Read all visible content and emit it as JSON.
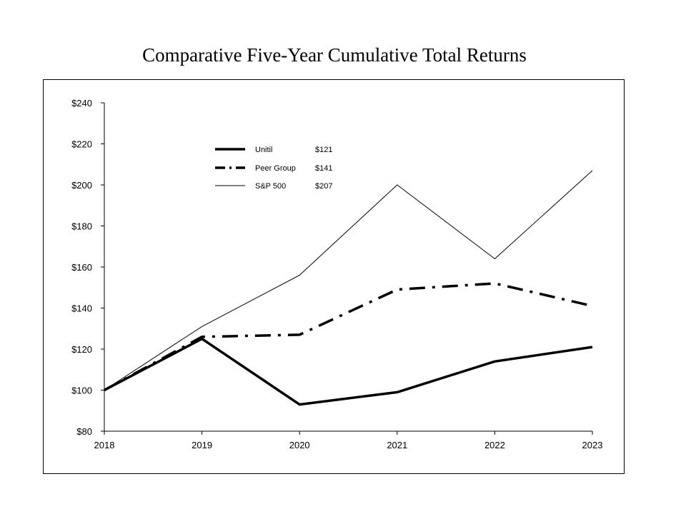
{
  "chart_data": {
    "type": "line",
    "title": "Comparative Five-Year Cumulative Total Returns",
    "x": [
      "2018",
      "2019",
      "2020",
      "2021",
      "2022",
      "2023"
    ],
    "ylim": [
      80,
      240
    ],
    "yticks": [
      80,
      100,
      120,
      140,
      160,
      180,
      200,
      220,
      240
    ],
    "ytick_labels": [
      "$80",
      "$100",
      "$120",
      "$140",
      "$160",
      "$180",
      "$200",
      "$220",
      "$240"
    ],
    "grid": false,
    "legend_position": "top-left",
    "series": [
      {
        "name": "Unitil",
        "values": [
          100,
          125,
          93,
          99,
          114,
          121
        ],
        "end_label": "$121",
        "style": "thick-solid",
        "color": "#000000"
      },
      {
        "name": "Peer Group",
        "values": [
          100,
          126,
          127,
          149,
          152,
          141
        ],
        "end_label": "$141",
        "style": "dash-dot",
        "color": "#000000"
      },
      {
        "name": "S&P 500",
        "values": [
          100,
          131,
          156,
          200,
          164,
          207
        ],
        "end_label": "$207",
        "style": "thin-solid",
        "color": "#000000"
      }
    ]
  }
}
